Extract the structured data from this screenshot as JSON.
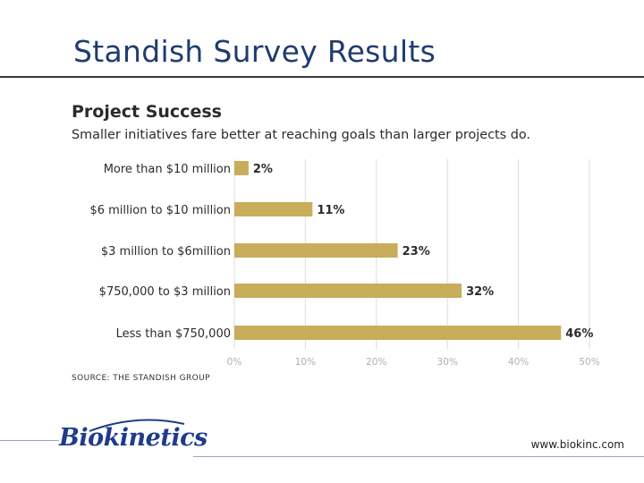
{
  "slide": {
    "title": "Standish Survey Results",
    "website": "www.biokinc.com",
    "logo_text": "Biokinetics"
  },
  "chart_data": {
    "type": "bar",
    "orientation": "horizontal",
    "title": "Project Success",
    "subtitle": "Smaller initiatives fare better at reaching goals than larger projects do.",
    "categories": [
      "More than $10 million",
      "$6 million to $10 million",
      "$3 million to $6million",
      "$750,000 to $3 million",
      "Less than $750,000"
    ],
    "values": [
      2,
      11,
      23,
      32,
      46
    ],
    "value_labels": [
      "2%",
      "11%",
      "23%",
      "32%",
      "46%"
    ],
    "x_ticks": [
      "0%",
      "10%",
      "20%",
      "30%",
      "40%",
      "50%"
    ],
    "xlim": [
      0,
      50
    ],
    "grid": true,
    "bar_color": "#c8ad5a",
    "source": "SOURCE: THE STANDISH GROUP"
  },
  "colors": {
    "title": "#1f3c6e",
    "logo": "#1f3c8c",
    "grid": "#dcdcdc",
    "tick": "#b0b0b0"
  }
}
